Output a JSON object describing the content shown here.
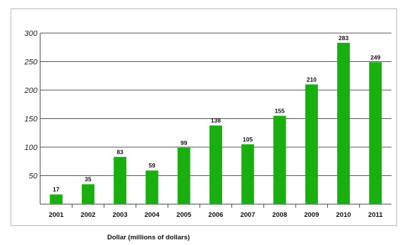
{
  "chart_data": {
    "type": "bar",
    "categories": [
      "2001",
      "2002",
      "2003",
      "2004",
      "2005",
      "2006",
      "2007",
      "2008",
      "2009",
      "2010",
      "2011"
    ],
    "values": [
      17,
      35,
      83,
      59,
      99,
      138,
      105,
      155,
      210,
      283,
      249
    ],
    "data_labels": [
      "17",
      "35",
      "83",
      "59",
      "99",
      "138",
      "105",
      "155",
      "210",
      "283",
      "249"
    ],
    "title": "",
    "xlabel": "Dollar (millions of dollars)",
    "ylabel": "",
    "ylim": [
      0,
      300
    ],
    "yticks": [
      50,
      100,
      150,
      200,
      250,
      300
    ],
    "ytick_labels": [
      "50",
      "100",
      "150",
      "200",
      "250",
      "300"
    ],
    "grid": true,
    "legend": "none",
    "bar_color": "#19b00f",
    "grid_color": "#555555"
  }
}
